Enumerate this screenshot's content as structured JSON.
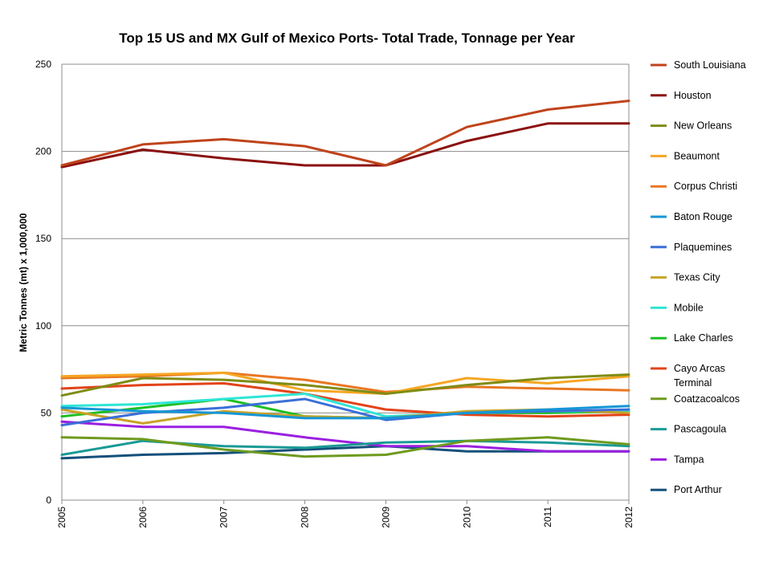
{
  "chart_data": {
    "type": "line",
    "title": "Top 15 US and MX Gulf of Mexico Ports- Total Trade, Tonnage per Year",
    "xlabel": "",
    "ylabel": "Metric Tonnes (mt) x 1,000,000",
    "ylim": [
      0,
      250
    ],
    "yticks": [
      0,
      50,
      100,
      150,
      200,
      250
    ],
    "x": [
      "2005",
      "2006",
      "2007",
      "2008",
      "2009",
      "2010",
      "2011",
      "2012"
    ],
    "grid": true,
    "legend_position": "right",
    "series": [
      {
        "name": "South Louisiana",
        "color": "#C0431B",
        "values": [
          192,
          204,
          207,
          203,
          192,
          214,
          224,
          229
        ]
      },
      {
        "name": "Houston",
        "color": "#8B0F0F",
        "values": [
          191,
          201,
          196,
          192,
          192,
          206,
          216,
          216
        ]
      },
      {
        "name": "New Orleans",
        "color": "#7F8C14",
        "values": [
          60,
          70,
          69,
          66,
          61,
          66,
          70,
          72
        ]
      },
      {
        "name": "Beaumont",
        "color": "#F5A623",
        "values": [
          71,
          72,
          73,
          63,
          61,
          70,
          67,
          71
        ]
      },
      {
        "name": "Corpus Christi",
        "color": "#E87722",
        "values": [
          70,
          71,
          73,
          69,
          62,
          65,
          64,
          63
        ]
      },
      {
        "name": "Baton Rouge",
        "color": "#1596D6",
        "values": [
          53,
          51,
          50,
          47,
          47,
          50,
          52,
          54
        ]
      },
      {
        "name": "Plaquemines",
        "color": "#3A6FD8",
        "values": [
          43,
          50,
          53,
          58,
          46,
          50,
          51,
          52
        ]
      },
      {
        "name": "Texas City",
        "color": "#C9A227",
        "values": [
          52,
          44,
          51,
          48,
          47,
          51,
          52,
          50
        ]
      },
      {
        "name": "Mobile",
        "color": "#2EE6D6",
        "values": [
          54,
          55,
          58,
          61,
          48,
          50,
          51,
          51
        ]
      },
      {
        "name": "Lake Charles",
        "color": "#1FBF24",
        "values": [
          48,
          53,
          58,
          48,
          47,
          50,
          50,
          51
        ]
      },
      {
        "name": "Cayo Arcas Terminal",
        "color": "#E2431A",
        "values": [
          64,
          66,
          67,
          61,
          52,
          49,
          48,
          49
        ]
      },
      {
        "name": "Coatzacoalcos",
        "color": "#6E9A1E",
        "values": [
          36,
          35,
          29,
          25,
          26,
          34,
          36,
          32
        ]
      },
      {
        "name": "Pascagoula",
        "color": "#1A9A96",
        "values": [
          26,
          34,
          31,
          30,
          33,
          34,
          33,
          31
        ]
      },
      {
        "name": "Tampa",
        "color": "#9B1FE0",
        "values": [
          45,
          42,
          42,
          36,
          31,
          31,
          28,
          28
        ]
      },
      {
        "name": "Port Arthur",
        "color": "#14507A",
        "values": [
          24,
          26,
          27,
          29,
          31,
          28,
          28,
          28
        ]
      }
    ]
  }
}
